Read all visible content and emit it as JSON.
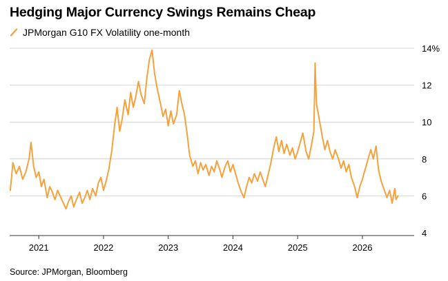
{
  "header": {
    "title": "Hedging Major Currency Swings Remains Cheap",
    "legend_label": "JPMorgan G10 FX Volatility one-month",
    "source": "Source: JPMorgan, Bloomberg"
  },
  "colors": {
    "series": "#F7A13B",
    "grid": "#d4d4d4",
    "axis": "#333333"
  },
  "chart_data": {
    "type": "line",
    "title": "Hedging Major Currency Swings Remains Cheap",
    "xlabel": "",
    "ylabel": "",
    "ylim": [
      4,
      14
    ],
    "xlim": [
      2020.55,
      2026.8
    ],
    "y_ticks": [
      {
        "value": 4,
        "label": "4"
      },
      {
        "value": 6,
        "label": "6"
      },
      {
        "value": 8,
        "label": "8"
      },
      {
        "value": 10,
        "label": "10"
      },
      {
        "value": 12,
        "label": "12"
      },
      {
        "value": 14,
        "label": "14%"
      }
    ],
    "x_ticks": [
      {
        "value": 2021,
        "label": "2021"
      },
      {
        "value": 2022,
        "label": "2022"
      },
      {
        "value": 2023,
        "label": "2023"
      },
      {
        "value": 2024,
        "label": "2024"
      },
      {
        "value": 2025,
        "label": "2025"
      },
      {
        "value": 2026,
        "label": "2026"
      }
    ],
    "grid": true,
    "legend": "top-left",
    "series": [
      {
        "name": "JPMorgan G10 FX Volatility one-month",
        "points": [
          [
            2020.56,
            6.3
          ],
          [
            2020.6,
            7.8
          ],
          [
            2020.65,
            7.2
          ],
          [
            2020.7,
            7.6
          ],
          [
            2020.75,
            6.9
          ],
          [
            2020.8,
            7.3
          ],
          [
            2020.85,
            8.0
          ],
          [
            2020.88,
            8.9
          ],
          [
            2020.92,
            7.6
          ],
          [
            2020.96,
            7.0
          ],
          [
            2021.0,
            7.3
          ],
          [
            2021.04,
            6.5
          ],
          [
            2021.08,
            6.9
          ],
          [
            2021.13,
            5.9
          ],
          [
            2021.17,
            6.5
          ],
          [
            2021.21,
            6.2
          ],
          [
            2021.25,
            5.8
          ],
          [
            2021.29,
            6.3
          ],
          [
            2021.33,
            6.0
          ],
          [
            2021.38,
            5.6
          ],
          [
            2021.42,
            5.3
          ],
          [
            2021.46,
            5.7
          ],
          [
            2021.5,
            6.0
          ],
          [
            2021.54,
            5.4
          ],
          [
            2021.58,
            5.8
          ],
          [
            2021.63,
            6.2
          ],
          [
            2021.67,
            5.6
          ],
          [
            2021.71,
            5.9
          ],
          [
            2021.75,
            6.3
          ],
          [
            2021.79,
            5.8
          ],
          [
            2021.83,
            6.4
          ],
          [
            2021.88,
            6.0
          ],
          [
            2021.92,
            6.7
          ],
          [
            2021.96,
            7.0
          ],
          [
            2022.0,
            6.3
          ],
          [
            2022.04,
            6.8
          ],
          [
            2022.08,
            7.4
          ],
          [
            2022.13,
            8.5
          ],
          [
            2022.17,
            9.8
          ],
          [
            2022.21,
            10.8
          ],
          [
            2022.25,
            9.5
          ],
          [
            2022.29,
            10.2
          ],
          [
            2022.33,
            11.2
          ],
          [
            2022.38,
            10.4
          ],
          [
            2022.42,
            11.6
          ],
          [
            2022.46,
            10.8
          ],
          [
            2022.5,
            11.4
          ],
          [
            2022.54,
            12.2
          ],
          [
            2022.58,
            11.5
          ],
          [
            2022.63,
            11.0
          ],
          [
            2022.67,
            12.4
          ],
          [
            2022.71,
            13.4
          ],
          [
            2022.75,
            13.9
          ],
          [
            2022.79,
            12.6
          ],
          [
            2022.83,
            11.8
          ],
          [
            2022.88,
            11.0
          ],
          [
            2022.92,
            10.3
          ],
          [
            2022.96,
            10.7
          ],
          [
            2023.0,
            9.8
          ],
          [
            2023.04,
            10.6
          ],
          [
            2023.08,
            9.9
          ],
          [
            2023.13,
            10.4
          ],
          [
            2023.17,
            11.7
          ],
          [
            2023.21,
            11.0
          ],
          [
            2023.25,
            10.4
          ],
          [
            2023.29,
            9.4
          ],
          [
            2023.33,
            8.2
          ],
          [
            2023.38,
            7.6
          ],
          [
            2023.42,
            7.9
          ],
          [
            2023.46,
            7.2
          ],
          [
            2023.5,
            7.8
          ],
          [
            2023.54,
            7.4
          ],
          [
            2023.58,
            7.7
          ],
          [
            2023.63,
            7.1
          ],
          [
            2023.67,
            7.6
          ],
          [
            2023.71,
            7.3
          ],
          [
            2023.75,
            7.9
          ],
          [
            2023.79,
            7.5
          ],
          [
            2023.83,
            7.0
          ],
          [
            2023.88,
            7.6
          ],
          [
            2023.92,
            7.9
          ],
          [
            2023.96,
            7.3
          ],
          [
            2024.0,
            7.7
          ],
          [
            2024.04,
            7.2
          ],
          [
            2024.08,
            6.7
          ],
          [
            2024.13,
            6.2
          ],
          [
            2024.17,
            5.9
          ],
          [
            2024.21,
            6.5
          ],
          [
            2024.25,
            7.0
          ],
          [
            2024.29,
            6.7
          ],
          [
            2024.33,
            7.2
          ],
          [
            2024.38,
            6.8
          ],
          [
            2024.42,
            7.3
          ],
          [
            2024.46,
            6.9
          ],
          [
            2024.5,
            6.5
          ],
          [
            2024.54,
            7.1
          ],
          [
            2024.58,
            7.7
          ],
          [
            2024.63,
            8.6
          ],
          [
            2024.67,
            9.2
          ],
          [
            2024.71,
            8.4
          ],
          [
            2024.75,
            9.0
          ],
          [
            2024.79,
            8.3
          ],
          [
            2024.83,
            8.8
          ],
          [
            2024.88,
            8.2
          ],
          [
            2024.92,
            8.6
          ],
          [
            2024.96,
            8.0
          ],
          [
            2025.0,
            8.4
          ],
          [
            2025.04,
            8.9
          ],
          [
            2025.08,
            9.4
          ],
          [
            2025.13,
            8.4
          ],
          [
            2025.17,
            8.0
          ],
          [
            2025.21,
            8.7
          ],
          [
            2025.25,
            9.5
          ],
          [
            2025.27,
            13.2
          ],
          [
            2025.29,
            11.0
          ],
          [
            2025.33,
            10.2
          ],
          [
            2025.38,
            9.2
          ],
          [
            2025.42,
            8.5
          ],
          [
            2025.46,
            9.0
          ],
          [
            2025.5,
            8.4
          ],
          [
            2025.54,
            8.0
          ],
          [
            2025.58,
            8.5
          ],
          [
            2025.63,
            8.0
          ],
          [
            2025.67,
            7.5
          ],
          [
            2025.71,
            7.9
          ],
          [
            2025.75,
            7.3
          ],
          [
            2025.79,
            7.7
          ],
          [
            2025.83,
            7.0
          ],
          [
            2025.88,
            6.5
          ],
          [
            2025.92,
            5.9
          ],
          [
            2025.96,
            6.5
          ],
          [
            2026.0,
            6.9
          ],
          [
            2026.04,
            7.4
          ],
          [
            2026.08,
            7.9
          ],
          [
            2026.13,
            8.5
          ],
          [
            2026.17,
            8.0
          ],
          [
            2026.21,
            8.7
          ],
          [
            2026.25,
            7.4
          ],
          [
            2026.29,
            6.8
          ],
          [
            2026.33,
            6.4
          ],
          [
            2026.38,
            5.9
          ],
          [
            2026.42,
            6.3
          ],
          [
            2026.46,
            5.6
          ],
          [
            2026.5,
            6.4
          ],
          [
            2026.52,
            5.8
          ],
          [
            2026.55,
            6.0
          ]
        ]
      }
    ]
  }
}
